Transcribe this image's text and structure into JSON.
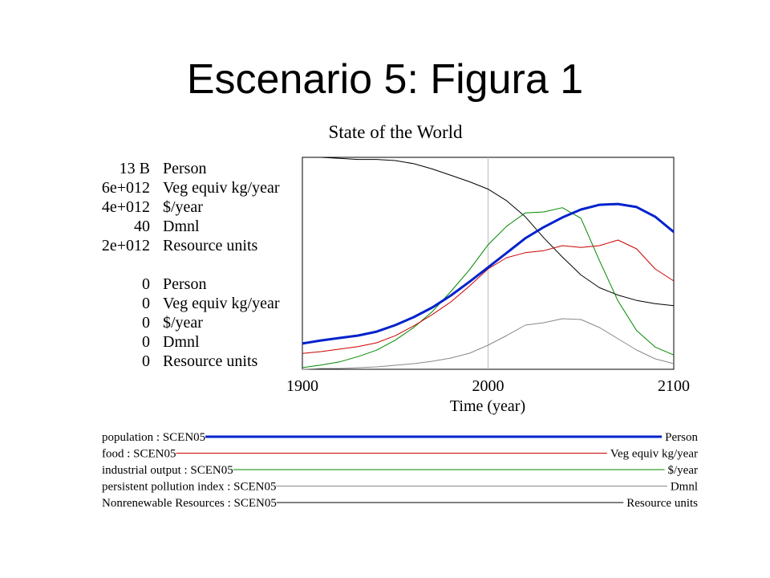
{
  "title": "Escenario 5: Figura 1",
  "chart_data": {
    "type": "line",
    "title": "State of the World",
    "x_label": "Time (year)",
    "x": [
      1900,
      1910,
      1920,
      1930,
      1940,
      1950,
      1960,
      1970,
      1980,
      1990,
      2000,
      2010,
      2020,
      2030,
      2040,
      2050,
      2060,
      2070,
      2080,
      2090,
      2100
    ],
    "xlim": [
      1900,
      2100
    ],
    "xticks": [
      1900,
      2000,
      2100
    ],
    "grid": true,
    "series": [
      {
        "name": "population : SCEN05",
        "unit": "Person",
        "color": "#0022cc",
        "line_width": 3,
        "ylim": [
          0,
          13000000000
        ],
        "yticks": [
          0,
          {
            "value": 13000000000,
            "label": "13 B"
          }
        ],
        "values": [
          1580000000,
          1770000000,
          1920000000,
          2070000000,
          2310000000,
          2710000000,
          3200000000,
          3790000000,
          4530000000,
          5370000000,
          6250000000,
          7140000000,
          8030000000,
          8720000000,
          9310000000,
          9800000000,
          10090000000,
          10140000000,
          9950000000,
          9360000000,
          8420000000
        ]
      },
      {
        "name": "food : SCEN05",
        "unit": "Veg equiv kg/year",
        "color": "#cc0000",
        "line_width": 1,
        "ylim": [
          0,
          6000000000000
        ],
        "yticks": [
          0,
          {
            "value": 6000000000000,
            "label": "6e+012"
          }
        ],
        "values": [
          450000000000,
          500000000000,
          570000000000,
          640000000000,
          750000000000,
          950000000000,
          1230000000000,
          1550000000000,
          1910000000000,
          2360000000000,
          2840000000000,
          3160000000000,
          3300000000000,
          3360000000000,
          3500000000000,
          3450000000000,
          3500000000000,
          3660000000000,
          3410000000000,
          2840000000000,
          2500000000000
        ]
      },
      {
        "name": "industrial output : SCEN05",
        "unit": "$/year",
        "color": "#008800",
        "line_width": 1,
        "ylim": [
          0,
          4000000000000
        ],
        "yticks": [
          0,
          {
            "value": 4000000000000,
            "label": "4e+012"
          }
        ],
        "values": [
          30000000000,
          80000000000,
          140000000000,
          240000000000,
          360000000000,
          550000000000,
          790000000000,
          1090000000000,
          1470000000000,
          1880000000000,
          2350000000000,
          2700000000000,
          2950000000000,
          2970000000000,
          3050000000000,
          2850000000000,
          2050000000000,
          1290000000000,
          730000000000,
          420000000000,
          270000000000
        ]
      },
      {
        "name": "persistent pollution index : SCEN05",
        "unit": "Dmnl",
        "color": "#888888",
        "line_width": 1,
        "ylim": [
          0,
          40
        ],
        "yticks": [
          0,
          40
        ],
        "values": [
          0,
          0.15,
          0.15,
          0.3,
          0.45,
          0.76,
          1.06,
          1.52,
          2.12,
          3.03,
          4.55,
          6.36,
          8.33,
          8.79,
          9.55,
          9.39,
          7.88,
          5.76,
          3.64,
          1.97,
          1.06
        ]
      },
      {
        "name": "Nonrenewable Resources : SCEN05",
        "unit": "Resource units",
        "color": "#000000",
        "line_width": 1,
        "ylim": [
          0,
          2000000000000
        ],
        "yticks": [
          0,
          {
            "value": 2000000000000,
            "label": "2e+012"
          }
        ],
        "values": [
          2000000000000,
          2000000000000,
          1990000000000,
          1980000000000,
          1980000000000,
          1970000000000,
          1940000000000,
          1890000000000,
          1830000000000,
          1770000000000,
          1700000000000,
          1590000000000,
          1440000000000,
          1240000000000,
          1060000000000,
          890000000000,
          770000000000,
          700000000000,
          650000000000,
          620000000000,
          600000000000
        ]
      }
    ]
  }
}
